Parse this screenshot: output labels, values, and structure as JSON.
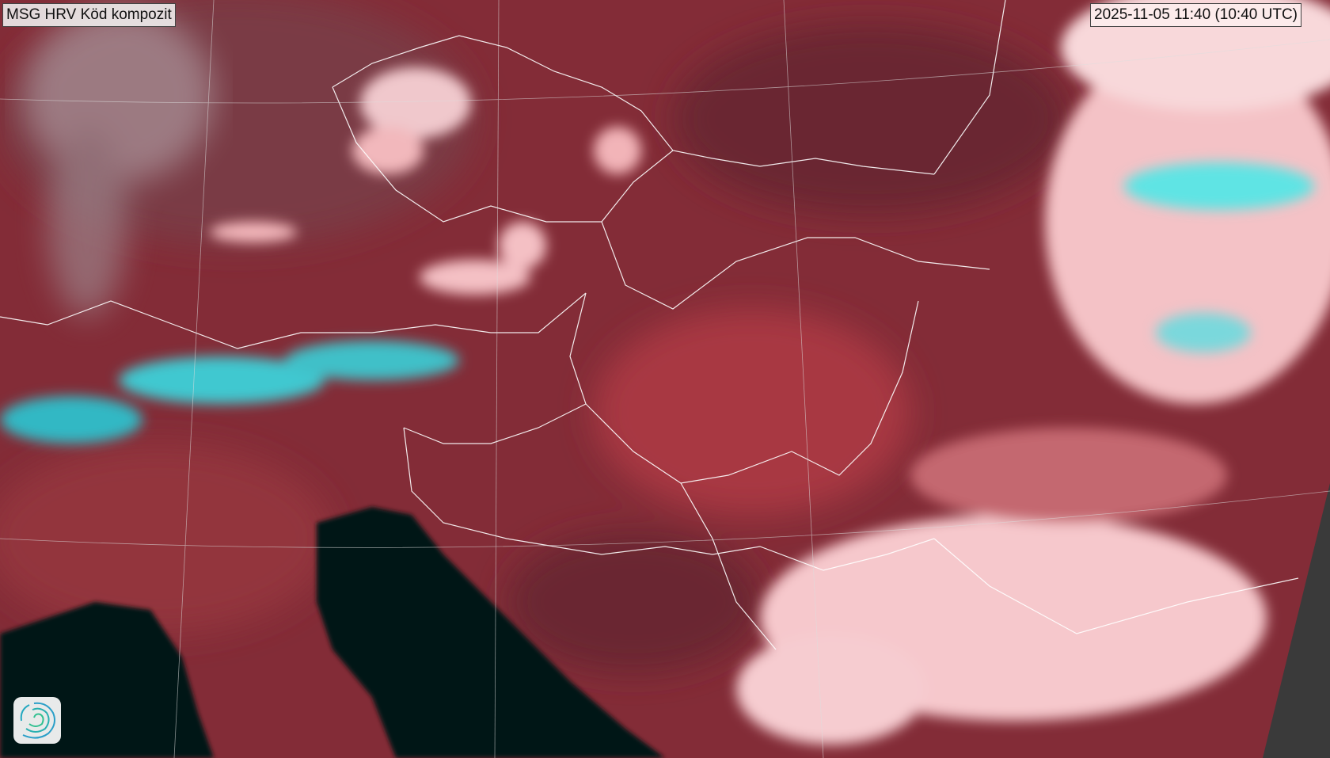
{
  "title": "MSG HRV Köd kompozit",
  "timestamp": "2025-11-05 11:40 (10:40 UTC)",
  "logo": "swirl-logo",
  "colors": {
    "land": "#8a2f3a",
    "sea": "#061414",
    "cloud": "#f4c4c8",
    "snow": "#4fe0e0",
    "nodata": "#3a3a3a",
    "borders": "#ffffff"
  }
}
